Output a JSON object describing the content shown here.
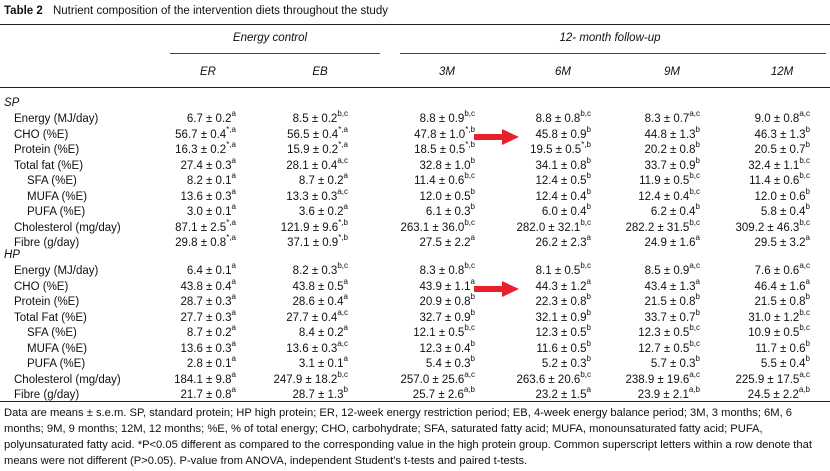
{
  "caption": {
    "label": "Table 2",
    "text": "Nutrient composition of the intervention diets throughout the study"
  },
  "group_headers": {
    "energy_control": "Energy control",
    "followup": "12- month follow-up"
  },
  "columns": [
    "ER",
    "EB",
    "3M",
    "6M",
    "9M",
    "12M"
  ],
  "sections": [
    {
      "label": "SP",
      "rows": [
        {
          "name": "Energy (MJ/day)",
          "indent": false,
          "cells": [
            [
              "6.7 ± 0.2",
              "a"
            ],
            [
              "8.5 ± 0.2",
              "b,c"
            ],
            [
              "8.8 ± 0.9",
              "b,c"
            ],
            [
              "8.8 ± 0.8",
              "b,c"
            ],
            [
              "8.3 ± 0.7",
              "a,c"
            ],
            [
              "9.0 ± 0.8",
              "a,c"
            ]
          ]
        },
        {
          "name": "CHO (%E)",
          "indent": false,
          "cells": [
            [
              "56.7 ± 0.4",
              "*,a"
            ],
            [
              "56.5 ± 0.4",
              "*,a"
            ],
            [
              "47.8 ± 1.0",
              "*,b"
            ],
            [
              "45.8 ± 0.9",
              "b"
            ],
            [
              "44.8 ± 1.3",
              "b"
            ],
            [
              "46.3 ± 1.3",
              "b"
            ]
          ]
        },
        {
          "name": "Protein (%E)",
          "indent": false,
          "cells": [
            [
              "16.3 ± 0.2",
              "*,a"
            ],
            [
              "15.9 ± 0.2",
              "*,a"
            ],
            [
              "18.5 ± 0.5",
              "*,b"
            ],
            [
              "19.5 ± 0.5",
              "*,b"
            ],
            [
              "20.2 ± 0.8",
              "b"
            ],
            [
              "20.5 ± 0.7",
              "b"
            ]
          ]
        },
        {
          "name": "Total fat (%E)",
          "indent": false,
          "cells": [
            [
              "27.4 ± 0.3",
              "a"
            ],
            [
              "28.1 ± 0.4",
              "a,c"
            ],
            [
              "32.8 ± 1.0",
              "b"
            ],
            [
              "34.1 ± 0.8",
              "b"
            ],
            [
              "33.7 ± 0.9",
              "b"
            ],
            [
              "32.4 ± 1.1",
              "b,c"
            ]
          ]
        },
        {
          "name": "SFA (%E)",
          "indent": true,
          "cells": [
            [
              "8.2 ± 0.1",
              "a"
            ],
            [
              "8.7 ± 0.2",
              "a"
            ],
            [
              "11.4 ± 0.6",
              "b,c"
            ],
            [
              "12.4 ± 0.5",
              "b"
            ],
            [
              "11.9 ± 0.5",
              "b,c"
            ],
            [
              "11.4 ± 0.6",
              "b,c"
            ]
          ]
        },
        {
          "name": "MUFA (%E)",
          "indent": true,
          "cells": [
            [
              "13.6 ± 0.3",
              "a"
            ],
            [
              "13.3 ± 0.3",
              "a,c"
            ],
            [
              "12.0 ± 0.5",
              "b"
            ],
            [
              "12.4 ± 0.4",
              "b"
            ],
            [
              "12.4 ± 0.4",
              "b,c"
            ],
            [
              "12.0 ± 0.6",
              "b"
            ]
          ]
        },
        {
          "name": "PUFA (%E)",
          "indent": true,
          "cells": [
            [
              "3.0 ± 0.1",
              "a"
            ],
            [
              "3.6 ± 0.2",
              "a"
            ],
            [
              "6.1 ± 0.3",
              "b"
            ],
            [
              "6.0 ± 0.4",
              "b"
            ],
            [
              "6.2 ± 0.4",
              "b"
            ],
            [
              "5.8 ± 0.4",
              "b"
            ]
          ]
        },
        {
          "name": "Cholesterol (mg/day)",
          "indent": false,
          "cells": [
            [
              "87.1 ± 2.5",
              "*,a"
            ],
            [
              "121.9 ± 9.6",
              "*,b"
            ],
            [
              "263.1 ± 36.0",
              "b,c"
            ],
            [
              "282.0 ± 32.1",
              "b,c"
            ],
            [
              "282.2 ± 31.5",
              "b,c"
            ],
            [
              "309.2 ± 46.3",
              "b,c"
            ]
          ]
        },
        {
          "name": "Fibre (g/day)",
          "indent": false,
          "cells": [
            [
              "29.8 ± 0.8",
              "*,a"
            ],
            [
              "37.1 ± 0.9",
              "*,b"
            ],
            [
              "27.5 ± 2.2",
              "a"
            ],
            [
              "26.2 ± 2.3",
              "a"
            ],
            [
              "24.9 ± 1.6",
              "a"
            ],
            [
              "29.5 ± 3.2",
              "a"
            ]
          ]
        }
      ]
    },
    {
      "label": "HP",
      "rows": [
        {
          "name": "Energy (MJ/day)",
          "indent": false,
          "cells": [
            [
              "6.4 ± 0.1",
              "a"
            ],
            [
              "8.2 ± 0.3",
              "b,c"
            ],
            [
              "8.3 ± 0.8",
              "b,c"
            ],
            [
              "8.1 ± 0.5",
              "b,c"
            ],
            [
              "8.5 ± 0.9",
              "a,c"
            ],
            [
              "7.6 ± 0.6",
              "a,c"
            ]
          ]
        },
        {
          "name": "CHO (%E)",
          "indent": false,
          "cells": [
            [
              "43.8 ± 0.4",
              "a"
            ],
            [
              "43.8 ± 0.5",
              "a"
            ],
            [
              "43.9 ± 1.1",
              "a"
            ],
            [
              "44.3 ± 1.2",
              "a"
            ],
            [
              "43.4 ± 1.3",
              "a"
            ],
            [
              "46.4 ± 1.6",
              "a"
            ]
          ]
        },
        {
          "name": "Protein (%E)",
          "indent": false,
          "cells": [
            [
              "28.7 ± 0.3",
              "a"
            ],
            [
              "28.6 ± 0.4",
              "a"
            ],
            [
              "20.9 ± 0.8",
              "b"
            ],
            [
              "22.3 ± 0.8",
              "b"
            ],
            [
              "21.5 ± 0.8",
              "b"
            ],
            [
              "21.5 ± 0.8",
              "b"
            ]
          ]
        },
        {
          "name": "Total Fat (%E)",
          "indent": false,
          "cells": [
            [
              "27.7 ± 0.3",
              "a"
            ],
            [
              "27.7 ± 0.4",
              "a,c"
            ],
            [
              "32.7 ± 0.9",
              "b"
            ],
            [
              "32.1 ± 0.9",
              "b"
            ],
            [
              "33.7 ± 0.7",
              "b"
            ],
            [
              "31.0 ± 1.2",
              "b,c"
            ]
          ]
        },
        {
          "name": "SFA (%E)",
          "indent": true,
          "cells": [
            [
              "8.7 ± 0.2",
              "a"
            ],
            [
              "8.4 ± 0.2",
              "a"
            ],
            [
              "12.1 ± 0.5",
              "b,c"
            ],
            [
              "12.3 ± 0.5",
              "b"
            ],
            [
              "12.3 ± 0.5",
              "b,c"
            ],
            [
              "10.9 ± 0.5",
              "b,c"
            ]
          ]
        },
        {
          "name": "MUFA (%E)",
          "indent": true,
          "cells": [
            [
              "13.6 ± 0.3",
              "a"
            ],
            [
              "13.6 ± 0.3",
              "a,c"
            ],
            [
              "12.3 ± 0.4",
              "b"
            ],
            [
              "11.6 ± 0.5",
              "b"
            ],
            [
              "12.7 ± 0.5",
              "b,c"
            ],
            [
              "11.7 ± 0.6",
              "b"
            ]
          ]
        },
        {
          "name": "PUFA (%E)",
          "indent": true,
          "cells": [
            [
              "2.8 ± 0.1",
              "a"
            ],
            [
              "3.1 ± 0.1",
              "a"
            ],
            [
              "5.4 ± 0.3",
              "b"
            ],
            [
              "5.2 ± 0.3",
              "b"
            ],
            [
              "5.7 ± 0.3",
              "b"
            ],
            [
              "5.5 ± 0.4",
              "b"
            ]
          ]
        },
        {
          "name": "Cholesterol (mg/day)",
          "indent": false,
          "cells": [
            [
              "184.1 ± 9.8",
              "a"
            ],
            [
              "247.9 ± 18.2",
              "b,c"
            ],
            [
              "257.0 ± 25.6",
              "a,c"
            ],
            [
              "263.6 ± 20.6",
              "b,c"
            ],
            [
              "238.9 ± 19.6",
              "a,c"
            ],
            [
              "225.9 ± 17.5",
              "a,c"
            ]
          ]
        },
        {
          "name": "Fibre (g/day)",
          "indent": false,
          "cells": [
            [
              "21.7 ± 0.8",
              "a"
            ],
            [
              "28.7 ± 1.3",
              "b"
            ],
            [
              "25.7 ± 2.6",
              "a,b"
            ],
            [
              "23.2 ± 1.5",
              "a"
            ],
            [
              "23.9 ± 2.1",
              "a,b"
            ],
            [
              "24.5 ± 2.2",
              "a,b"
            ]
          ]
        }
      ]
    }
  ],
  "footnote": "Data are means ± s.e.m. SP, standard protein; HP high protein; ER, 12-week energy restriction period; EB, 4-week energy balance period; 3M, 3 months; 6M, 6 months; 9M, 9 months; 12M, 12 months; %E, % of total energy; CHO, carbohydrate; SFA, saturated fatty acid; MUFA, monounsaturated fatty acid; PUFA, polyunsaturated fatty acid. *P<0.05 different as compared to the corresponding value in the high protein group. Common superscript letters within a row denote that means were not different (P>0.05). P-value from ANOVA, independent Student's t-tests and paired t-tests.",
  "colors": {
    "arrow": "#e8202a",
    "rule": "#222222"
  },
  "icons": {
    "arrow": "right-arrow-icon"
  }
}
